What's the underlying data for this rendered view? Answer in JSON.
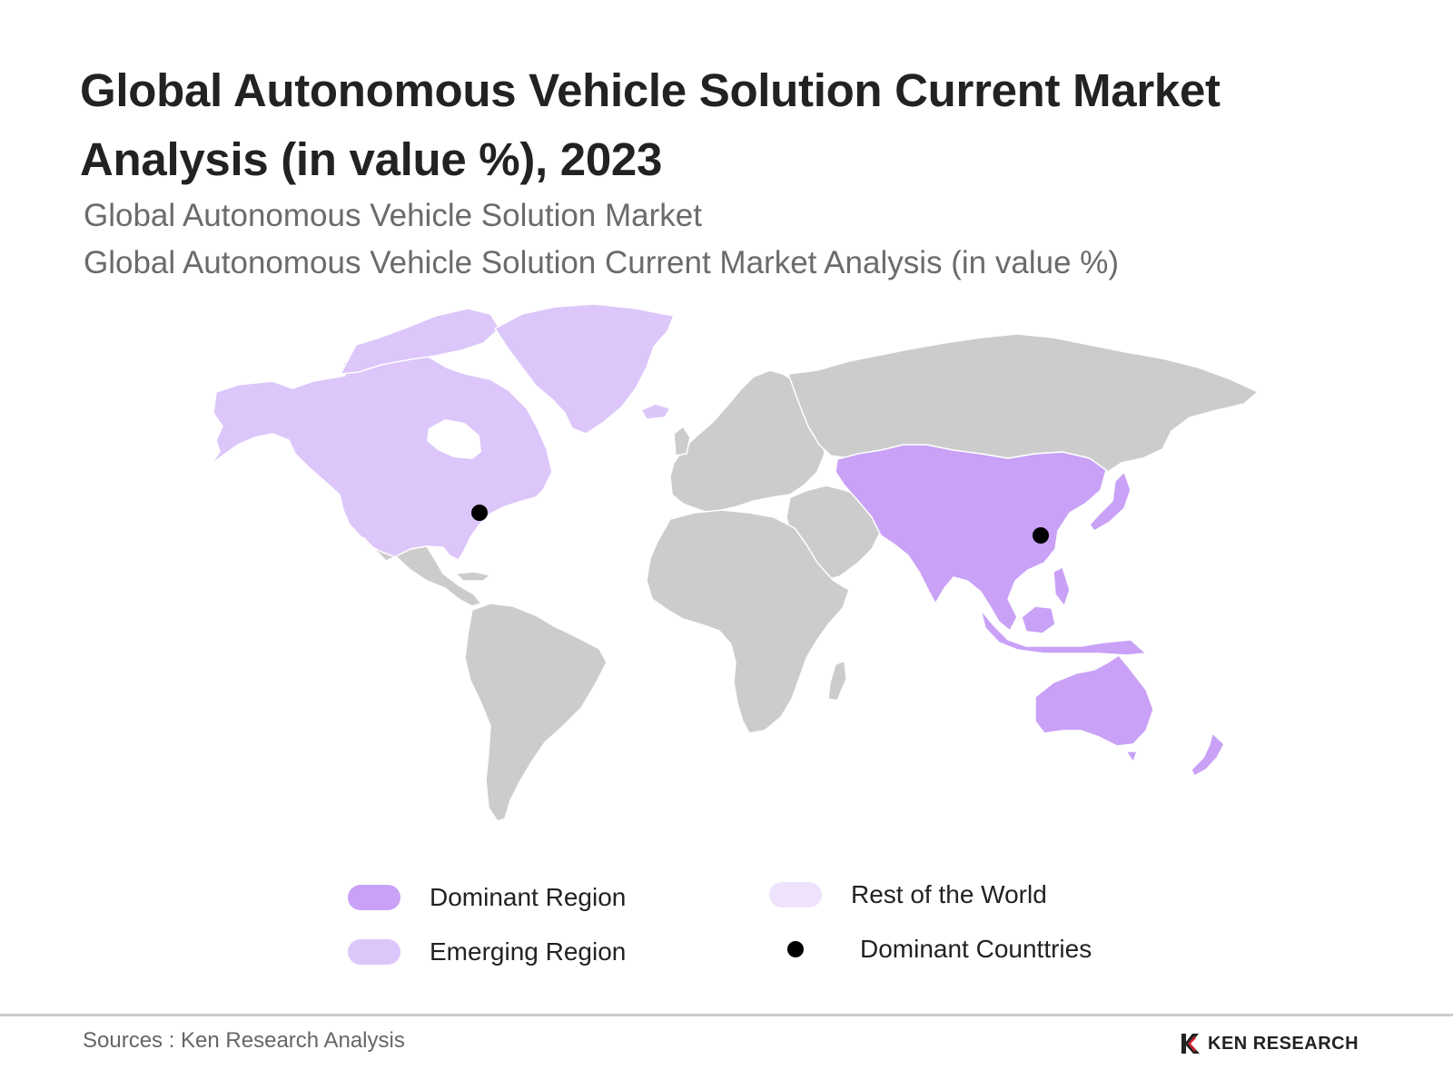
{
  "header": {
    "title": "Global Autonomous Vehicle Solution Current Market Analysis (in value %), 2023",
    "subtitle_1": "Global Autonomous Vehicle Solution Market",
    "subtitle_2": "Global Autonomous Vehicle Solution Current Market Analysis (in value %)"
  },
  "map": {
    "regions": [
      {
        "name": "North America",
        "category": "emerging"
      },
      {
        "name": "Greenland",
        "category": "emerging"
      },
      {
        "name": "Latin America",
        "category": "rest"
      },
      {
        "name": "Europe",
        "category": "rest"
      },
      {
        "name": "Africa",
        "category": "rest"
      },
      {
        "name": "Middle East",
        "category": "rest"
      },
      {
        "name": "Russia",
        "category": "rest"
      },
      {
        "name": "Asia Pacific",
        "category": "dominant"
      },
      {
        "name": "Australia and New Zealand",
        "category": "dominant"
      }
    ],
    "dominant_countries": [
      "United States",
      "China"
    ]
  },
  "legend": {
    "dominant_label": "Dominant Region",
    "emerging_label": "Emerging Region",
    "rest_label": "Rest of the World",
    "countries_label": "Dominant Counttries"
  },
  "colors": {
    "dominant": "#c9a1f7",
    "emerging": "#dcc6fa",
    "rest_of_world_legend": "#efe3fc",
    "map_gray": "#cccccc",
    "dot": "#000000"
  },
  "footer": {
    "source": "Sources : Ken Research Analysis",
    "logo_text": "KEN RESEARCH"
  }
}
